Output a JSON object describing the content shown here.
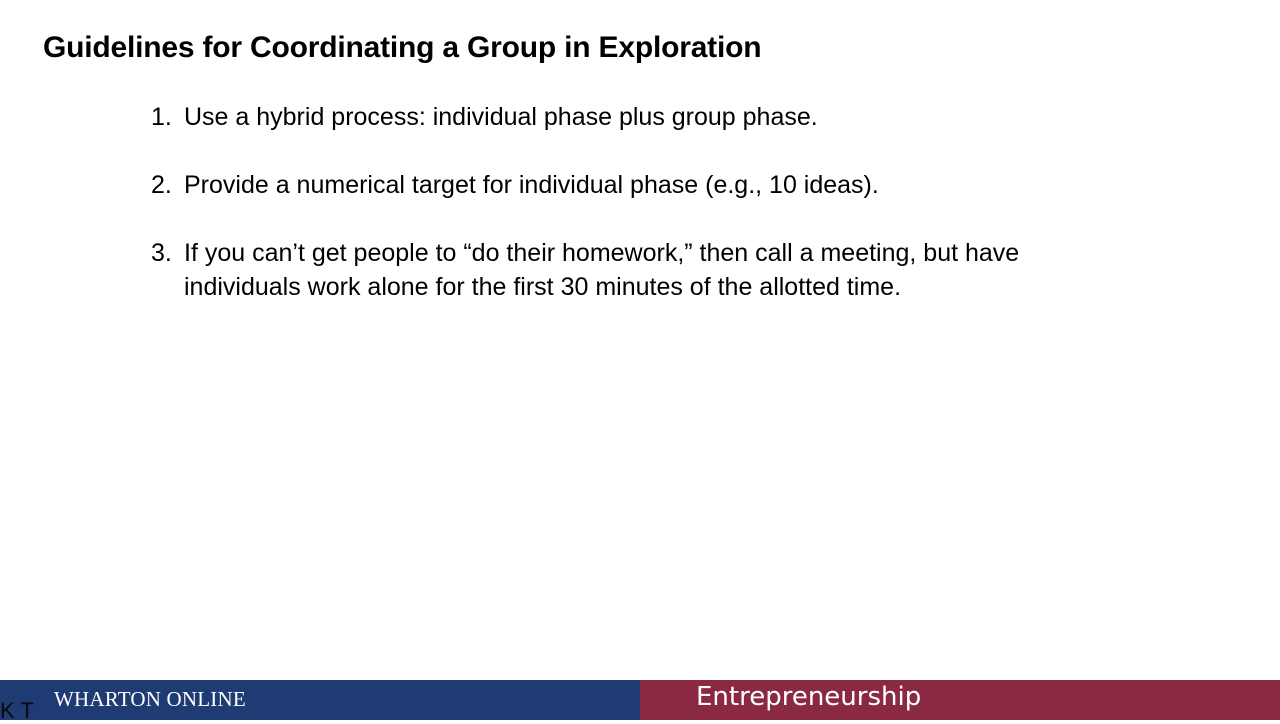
{
  "slide": {
    "title": "Guidelines for Coordinating a Group in Exploration",
    "guidelines": [
      {
        "number": "1.",
        "text": "Use a hybrid process: individual phase plus group phase."
      },
      {
        "number": "2.",
        "text": "Provide a numerical target for individual phase (e.g., 10 ideas)."
      },
      {
        "number": "3.",
        "text": "If you can’t get people to “do their homework,” then call a meeting, but have individuals work alone for the first 30 minutes of the allotted time."
      }
    ]
  },
  "footer": {
    "brand": "WHARTON ONLINE",
    "course": "Entrepreneurship",
    "corner_mark": "K T",
    "colors": {
      "left_band": "#1f3b73",
      "right_band": "#8b2942"
    }
  }
}
